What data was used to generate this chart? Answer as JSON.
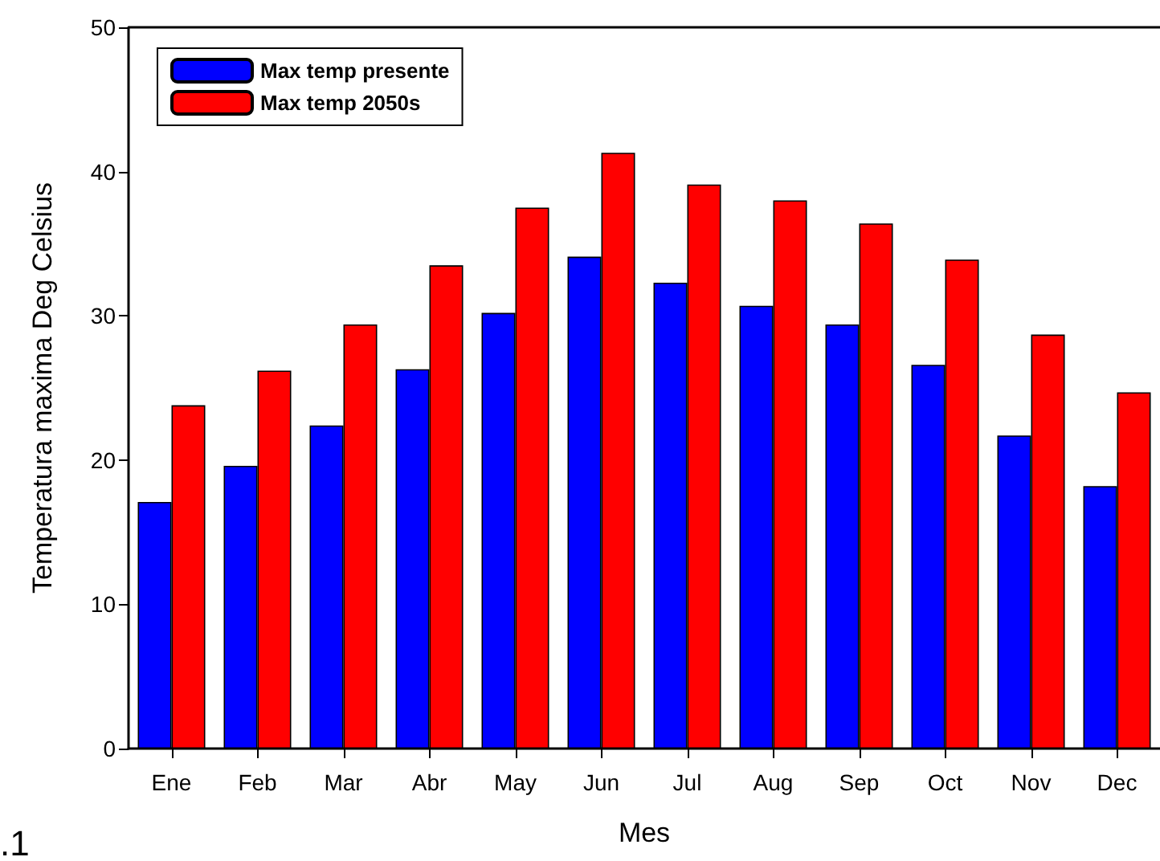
{
  "chart_data": {
    "type": "bar",
    "xlabel": "Mes",
    "ylabel": "Temperatura maxima Deg Celsius",
    "categories": [
      "Ene",
      "Feb",
      "Mar",
      "Abr",
      "May",
      "Jun",
      "Jul",
      "Aug",
      "Sep",
      "Oct",
      "Nov",
      "Dec"
    ],
    "series": [
      {
        "name": "Max temp presente",
        "color": "#0000ff",
        "values": [
          17.1,
          19.6,
          22.4,
          26.3,
          30.2,
          34.1,
          32.3,
          30.7,
          29.4,
          26.6,
          21.7,
          18.2
        ]
      },
      {
        "name": "Max temp 2050s",
        "color": "#ff0000",
        "values": [
          23.8,
          26.2,
          29.4,
          33.5,
          37.5,
          41.3,
          39.1,
          38.0,
          36.4,
          33.9,
          28.7,
          24.7
        ]
      }
    ],
    "ylim": [
      0,
      50
    ],
    "yticks": [
      0,
      10,
      20,
      30,
      40,
      50
    ],
    "grid": false,
    "legend": "top left",
    "annotations": [
      ".1"
    ]
  }
}
